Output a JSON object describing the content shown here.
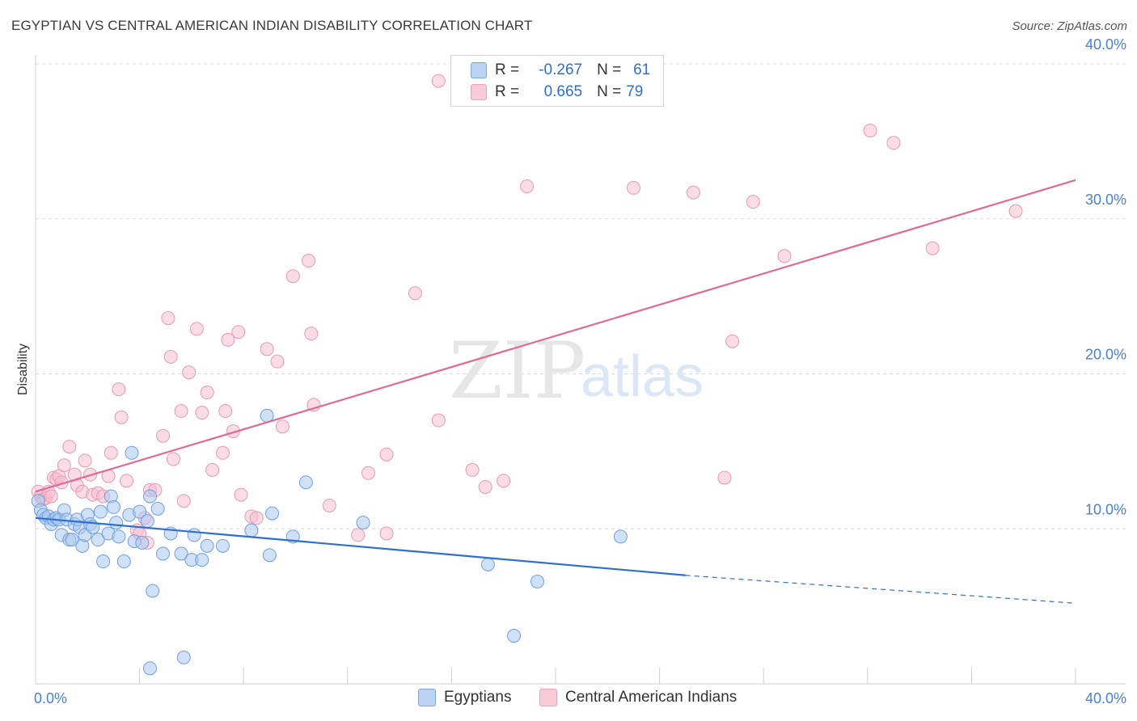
{
  "title": "EGYPTIAN VS CENTRAL AMERICAN INDIAN DISABILITY CORRELATION CHART",
  "source": "Source: ZipAtlas.com",
  "watermark": {
    "zip": "ZIP",
    "atlas": "atlas"
  },
  "colors": {
    "blue_fill": "#a9c8f0",
    "blue_stroke": "#6f9fdf",
    "blue_line": "#2f6fd0",
    "pink_fill": "#f6bfd0",
    "pink_stroke": "#ea98b3",
    "pink_line": "#e06a93",
    "grid": "#dcdcdc",
    "tick_text": "#4a7fd4"
  },
  "legend": {
    "rows": [
      {
        "r_label": "R =",
        "r_value": "-0.267",
        "n_label": "N =",
        "n_value": "61",
        "series": "Egyptians"
      },
      {
        "r_label": "R =",
        "r_value": "0.665",
        "n_label": "N =",
        "n_value": "79",
        "series": "Central American Indians"
      }
    ]
  },
  "bottom_legend": {
    "items": [
      "Egyptians",
      "Central American Indians"
    ]
  },
  "chart_data": {
    "type": "scatter",
    "title": "EGYPTIAN VS CENTRAL AMERICAN INDIAN DISABILITY CORRELATION CHART",
    "xlabel": "",
    "ylabel": "Disability",
    "xlim": [
      0,
      40
    ],
    "ylim": [
      0,
      40
    ],
    "x_tick_labels": [
      "0.0%",
      "40.0%"
    ],
    "y_ticks": [
      10,
      20,
      30,
      40
    ],
    "y_tick_labels": [
      "10.0%",
      "20.0%",
      "30.0%",
      "40.0%"
    ],
    "grid": true,
    "legend_position": "top-center",
    "series": [
      {
        "name": "Egyptians",
        "color": "#a9c8f0",
        "trend": {
          "x": [
            0,
            25
          ],
          "y": [
            10.7,
            7.0
          ],
          "dashed_to": [
            40,
            5.2
          ]
        },
        "points": [
          [
            0.1,
            11.8
          ],
          [
            0.2,
            11.2
          ],
          [
            0.3,
            10.9
          ],
          [
            0.4,
            10.7
          ],
          [
            0.5,
            10.8
          ],
          [
            0.6,
            10.3
          ],
          [
            0.7,
            10.6
          ],
          [
            0.8,
            10.7
          ],
          [
            0.9,
            10.6
          ],
          [
            1.0,
            9.6
          ],
          [
            1.1,
            11.2
          ],
          [
            1.2,
            10.6
          ],
          [
            1.3,
            9.3
          ],
          [
            1.4,
            9.3
          ],
          [
            1.5,
            10.3
          ],
          [
            1.6,
            10.6
          ],
          [
            1.7,
            10.1
          ],
          [
            1.8,
            8.9
          ],
          [
            1.9,
            9.6
          ],
          [
            2.0,
            10.9
          ],
          [
            2.1,
            10.3
          ],
          [
            2.2,
            10.1
          ],
          [
            2.4,
            9.3
          ],
          [
            2.5,
            11.1
          ],
          [
            2.6,
            7.9
          ],
          [
            2.8,
            9.7
          ],
          [
            2.9,
            12.1
          ],
          [
            3.0,
            11.4
          ],
          [
            3.1,
            10.4
          ],
          [
            3.2,
            9.5
          ],
          [
            3.4,
            7.9
          ],
          [
            3.6,
            10.9
          ],
          [
            3.7,
            14.9
          ],
          [
            3.8,
            9.2
          ],
          [
            4.0,
            11.1
          ],
          [
            4.1,
            9.1
          ],
          [
            4.3,
            10.5
          ],
          [
            4.4,
            12.1
          ],
          [
            4.5,
            6.0
          ],
          [
            4.7,
            11.3
          ],
          [
            4.9,
            8.4
          ],
          [
            5.2,
            9.7
          ],
          [
            5.6,
            8.4
          ],
          [
            6.0,
            8.0
          ],
          [
            6.1,
            9.6
          ],
          [
            6.4,
            8.0
          ],
          [
            6.6,
            8.9
          ],
          [
            7.2,
            8.9
          ],
          [
            8.3,
            9.9
          ],
          [
            8.9,
            17.3
          ],
          [
            9.0,
            8.3
          ],
          [
            9.1,
            11.0
          ],
          [
            9.9,
            9.5
          ],
          [
            10.4,
            13.0
          ],
          [
            12.6,
            10.4
          ],
          [
            17.4,
            7.7
          ],
          [
            18.4,
            3.1
          ],
          [
            19.3,
            6.6
          ],
          [
            22.5,
            9.5
          ],
          [
            4.4,
            1.0
          ],
          [
            5.7,
            1.7
          ]
        ]
      },
      {
        "name": "Central American Indians",
        "color": "#f6bfd0",
        "trend": {
          "x": [
            0,
            40
          ],
          "y": [
            12.4,
            32.5
          ]
        },
        "points": [
          [
            0.1,
            12.4
          ],
          [
            0.2,
            12.1
          ],
          [
            0.3,
            11.9
          ],
          [
            0.4,
            12.0
          ],
          [
            0.5,
            12.4
          ],
          [
            0.6,
            12.1
          ],
          [
            0.7,
            13.3
          ],
          [
            0.8,
            13.2
          ],
          [
            0.9,
            13.4
          ],
          [
            1.0,
            13.0
          ],
          [
            1.1,
            14.1
          ],
          [
            1.3,
            15.3
          ],
          [
            1.5,
            13.5
          ],
          [
            1.6,
            12.8
          ],
          [
            1.8,
            12.4
          ],
          [
            1.9,
            14.4
          ],
          [
            2.1,
            13.5
          ],
          [
            2.2,
            12.2
          ],
          [
            2.4,
            12.3
          ],
          [
            2.6,
            12.1
          ],
          [
            2.8,
            13.4
          ],
          [
            2.9,
            14.9
          ],
          [
            3.2,
            19.0
          ],
          [
            3.3,
            17.2
          ],
          [
            3.5,
            13.1
          ],
          [
            3.9,
            9.9
          ],
          [
            4.0,
            9.7
          ],
          [
            4.2,
            10.7
          ],
          [
            4.3,
            9.1
          ],
          [
            4.4,
            12.5
          ],
          [
            4.6,
            12.5
          ],
          [
            4.9,
            16.0
          ],
          [
            5.1,
            23.6
          ],
          [
            5.2,
            21.1
          ],
          [
            5.3,
            14.5
          ],
          [
            5.6,
            17.6
          ],
          [
            5.7,
            11.8
          ],
          [
            5.9,
            20.1
          ],
          [
            6.2,
            22.9
          ],
          [
            6.4,
            17.5
          ],
          [
            6.6,
            18.8
          ],
          [
            6.8,
            13.8
          ],
          [
            7.2,
            14.9
          ],
          [
            7.3,
            17.6
          ],
          [
            7.4,
            22.2
          ],
          [
            7.6,
            16.3
          ],
          [
            7.8,
            22.7
          ],
          [
            7.9,
            12.2
          ],
          [
            8.3,
            10.8
          ],
          [
            8.5,
            10.7
          ],
          [
            8.9,
            21.6
          ],
          [
            9.3,
            20.8
          ],
          [
            9.5,
            16.6
          ],
          [
            9.9,
            26.3
          ],
          [
            10.5,
            27.3
          ],
          [
            10.6,
            22.6
          ],
          [
            10.7,
            18.0
          ],
          [
            11.3,
            11.5
          ],
          [
            12.4,
            9.6
          ],
          [
            12.8,
            13.6
          ],
          [
            13.5,
            14.8
          ],
          [
            13.5,
            9.7
          ],
          [
            14.6,
            25.2
          ],
          [
            15.5,
            17.0
          ],
          [
            16.8,
            13.8
          ],
          [
            17.3,
            12.7
          ],
          [
            18.0,
            13.1
          ],
          [
            18.9,
            32.1
          ],
          [
            23.0,
            32.0
          ],
          [
            25.3,
            31.7
          ],
          [
            26.8,
            22.1
          ],
          [
            27.6,
            31.1
          ],
          [
            28.8,
            27.6
          ],
          [
            32.1,
            35.7
          ],
          [
            33.0,
            34.9
          ],
          [
            34.5,
            28.1
          ],
          [
            37.7,
            30.5
          ],
          [
            15.5,
            38.9
          ],
          [
            26.5,
            13.3
          ]
        ]
      }
    ]
  }
}
